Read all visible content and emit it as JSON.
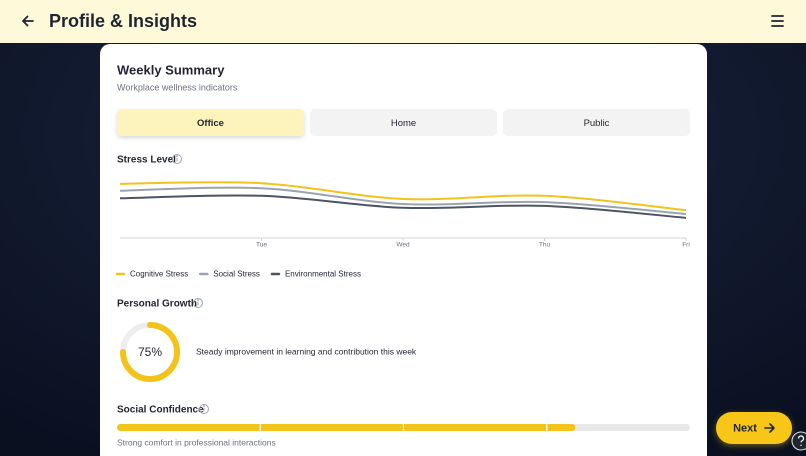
{
  "header": {
    "title": "Profile & Insights"
  },
  "summary": {
    "title": "Weekly Summary",
    "subtitle": "Workplace wellness indicators"
  },
  "tabs": [
    {
      "label": "Office",
      "active": true
    },
    {
      "label": "Home",
      "active": false
    },
    {
      "label": "Public",
      "active": false
    }
  ],
  "stress_chart": {
    "type": "line",
    "title": "Stress Level",
    "categories": [
      null,
      "Tue",
      "Wed",
      "Thu",
      "Fri"
    ],
    "ylim": [
      0,
      100
    ],
    "series": [
      {
        "name": "Cognitive Stress",
        "color": "#f2c31b",
        "values": [
          86,
          87,
          62,
          67,
          44
        ]
      },
      {
        "name": "Social Stress",
        "color": "#9aa3ae",
        "values": [
          75,
          79,
          54,
          57,
          38
        ]
      },
      {
        "name": "Environmental Stress",
        "color": "#4b5563",
        "values": [
          63,
          67,
          48,
          51,
          32
        ]
      }
    ]
  },
  "growth": {
    "type": "donut",
    "title": "Personal Growth",
    "range": [
      0,
      100
    ],
    "value": 75,
    "value_label": "75%",
    "description": "Steady improvement in learning and contribution this week",
    "color": "#f2c31b"
  },
  "confidence": {
    "type": "progress",
    "title": "Social Confidence",
    "range": [
      0,
      100
    ],
    "value": 80,
    "description": "Strong comfort in professional interactions",
    "color": "#f2c31b"
  },
  "next_button": {
    "label": "Next"
  }
}
